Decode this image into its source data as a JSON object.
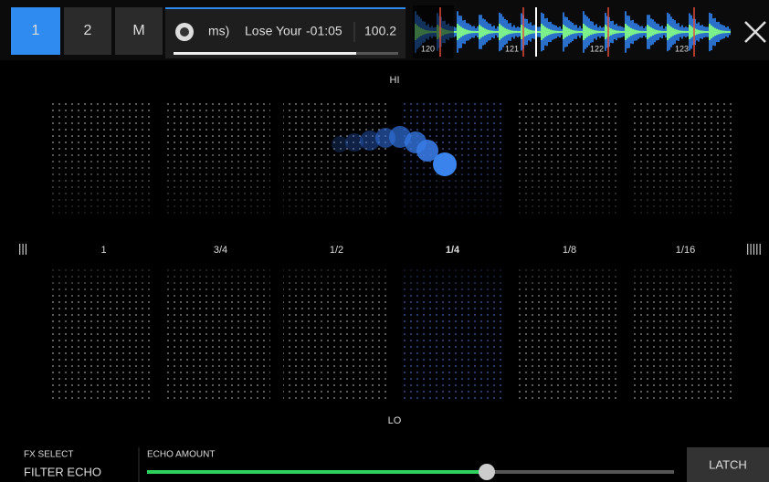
{
  "deck_tabs": [
    "1",
    "2",
    "M"
  ],
  "track": {
    "artwork_text": "ms)",
    "title": "Lose Your",
    "time": "-01:05",
    "bpm": "100.2"
  },
  "waveform": {
    "beats": [
      "120",
      "121",
      "122",
      "123"
    ]
  },
  "pad": {
    "top_label": "HI",
    "bottom_label": "LO",
    "left_marker": "|||",
    "right_marker": "|||||",
    "divisions": [
      "1",
      "3/4",
      "1/2",
      "1/4",
      "1/8",
      "1/16"
    ]
  },
  "footer": {
    "fx_select_label": "FX SELECT",
    "fx_select_value": "FILTER ECHO",
    "amount_label": "ECHO AMOUNT",
    "latch": "LATCH"
  }
}
